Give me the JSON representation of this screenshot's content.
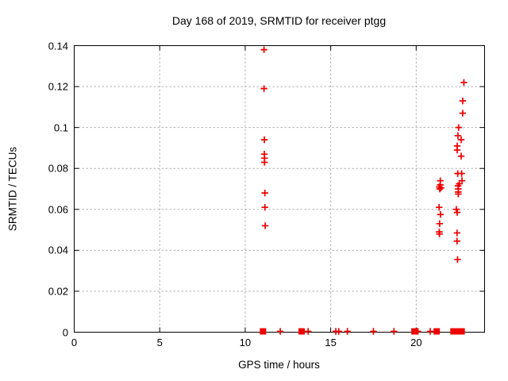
{
  "chart_data": {
    "type": "scatter",
    "title": "Day 168 of 2019, SRMTID for receiver ptgg",
    "xlabel": "GPS time / hours",
    "ylabel": "SRMTID / TECUs",
    "xlim": [
      0,
      24
    ],
    "ylim": [
      0,
      0.14
    ],
    "xticks": {
      "values": [
        0,
        5,
        10,
        15,
        20
      ],
      "labels": [
        "0",
        "5",
        "10",
        "15",
        "20"
      ]
    },
    "yticks": {
      "values": [
        0,
        0.02,
        0.04,
        0.06,
        0.08,
        0.1,
        0.12,
        0.14
      ],
      "labels": [
        "0",
        "0.02",
        "0.04",
        "0.06",
        "0.08",
        "0.1",
        "0.12",
        "0.14"
      ]
    },
    "grid": true,
    "legend": "none",
    "marker": "plus",
    "marker_color": "#ee0000",
    "grid_color": "#b0b0b0",
    "axis_color": "#000000",
    "series": [
      {
        "name": "SRMTID",
        "points": [
          [
            11.1,
            0.138
          ],
          [
            11.1,
            0.119
          ],
          [
            11.12,
            0.094
          ],
          [
            11.12,
            0.087
          ],
          [
            11.13,
            0.085
          ],
          [
            11.13,
            0.083
          ],
          [
            11.15,
            0.068
          ],
          [
            11.15,
            0.061
          ],
          [
            11.17,
            0.052
          ],
          [
            21.41,
            0.074
          ],
          [
            21.41,
            0.072
          ],
          [
            21.35,
            0.071
          ],
          [
            21.45,
            0.0705
          ],
          [
            21.38,
            0.07
          ],
          [
            21.34,
            0.061
          ],
          [
            21.42,
            0.0575
          ],
          [
            21.37,
            0.053
          ],
          [
            21.35,
            0.049
          ],
          [
            21.36,
            0.048
          ],
          [
            22.79,
            0.122
          ],
          [
            22.72,
            0.113
          ],
          [
            22.72,
            0.107
          ],
          [
            22.48,
            0.1
          ],
          [
            22.44,
            0.096
          ],
          [
            22.63,
            0.094
          ],
          [
            22.4,
            0.091
          ],
          [
            22.4,
            0.089
          ],
          [
            22.63,
            0.086
          ],
          [
            22.43,
            0.0775
          ],
          [
            22.66,
            0.0775
          ],
          [
            22.68,
            0.074
          ],
          [
            22.52,
            0.0725
          ],
          [
            22.45,
            0.0715
          ],
          [
            22.46,
            0.07
          ],
          [
            22.46,
            0.0685
          ],
          [
            22.46,
            0.0675
          ],
          [
            22.35,
            0.06
          ],
          [
            22.4,
            0.0585
          ],
          [
            22.39,
            0.0485
          ],
          [
            22.39,
            0.0445
          ],
          [
            22.42,
            0.0355
          ],
          [
            12.05,
            0
          ],
          [
            13.68,
            0
          ],
          [
            15.3,
            0
          ],
          [
            15.47,
            0
          ],
          [
            15.98,
            0
          ],
          [
            17.5,
            0
          ],
          [
            18.7,
            0
          ],
          [
            20.1,
            0
          ],
          [
            20.82,
            0
          ]
        ]
      }
    ],
    "zero_line_dense_clusters_x": [
      11.04,
      13.3,
      19.9,
      21.2,
      22.18,
      22.42,
      22.66
    ]
  }
}
